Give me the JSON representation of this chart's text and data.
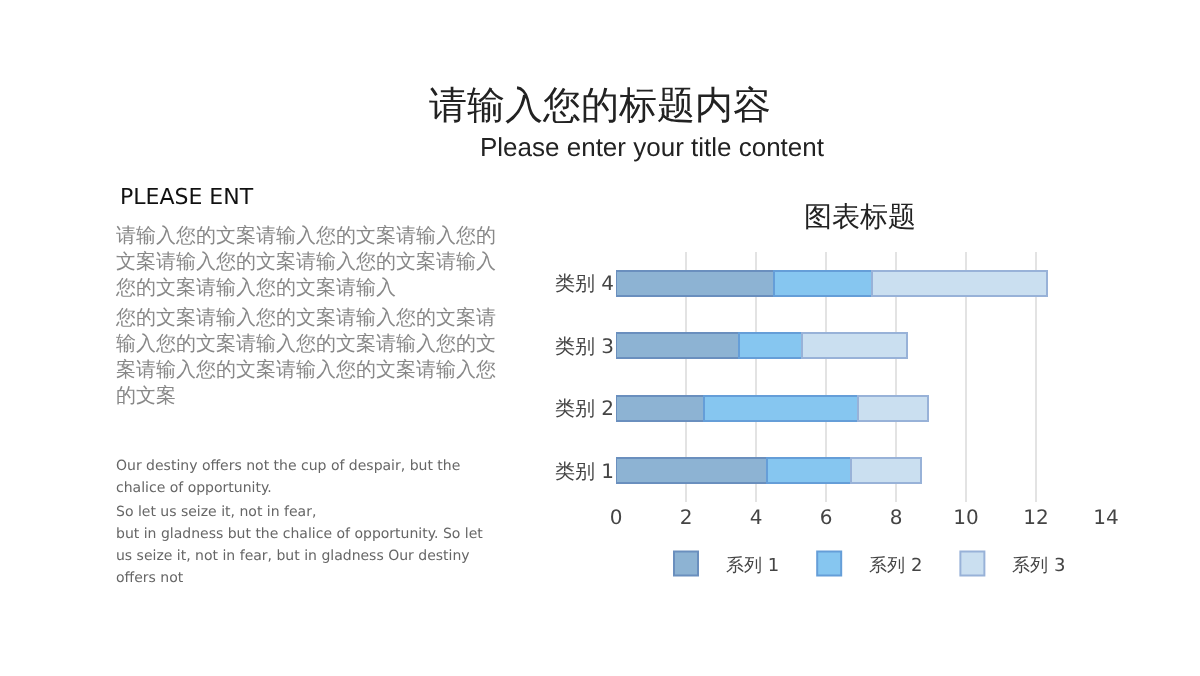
{
  "chart_data": {
    "type": "bar",
    "orientation": "horizontal",
    "stacked": true,
    "title": "请输入您的标题内容",
    "subtitle": "Please enter your title content",
    "annotations": [
      "图表标题",
      "PLEASE ENT",
      "请输入您的文案请输入您的文案请输入您的文案请输入您的文案请输入您的文案请输入您的文案请输入您的文案请输入",
      "您的文案请输入您的文案请输入您的文案请输入您的文案请输入您的文案请输入您的文案请输入您的文案请输入您的文案请输入您的文案",
      "Our destiny offers not the cup of despair, but the chalice of opportunity.",
      "So let us seize it, not in fear,",
      "but in gladness but the chalice of opportunity. So let us seize it, not in fear, but in gladness Our destiny offers not"
    ],
    "categories": [
      "类别 4",
      "类别 3",
      "类别 2",
      "类别 1"
    ],
    "series": [
      {
        "name": "系列 1",
        "color": "#8db3d3",
        "values": [
          4.5,
          3.5,
          2.5,
          4.3
        ]
      },
      {
        "name": "系列 2",
        "color": "#86c6f0",
        "values": [
          2.8,
          1.8,
          4.4,
          2.4
        ]
      },
      {
        "name": "系列 3",
        "color": "#cadff0",
        "values": [
          5,
          3,
          2,
          2
        ]
      }
    ],
    "xlim": [
      0,
      14
    ],
    "xticks": [
      0,
      2,
      4,
      6,
      8,
      10,
      12,
      14
    ],
    "grid": "x",
    "legend": "bottom"
  }
}
